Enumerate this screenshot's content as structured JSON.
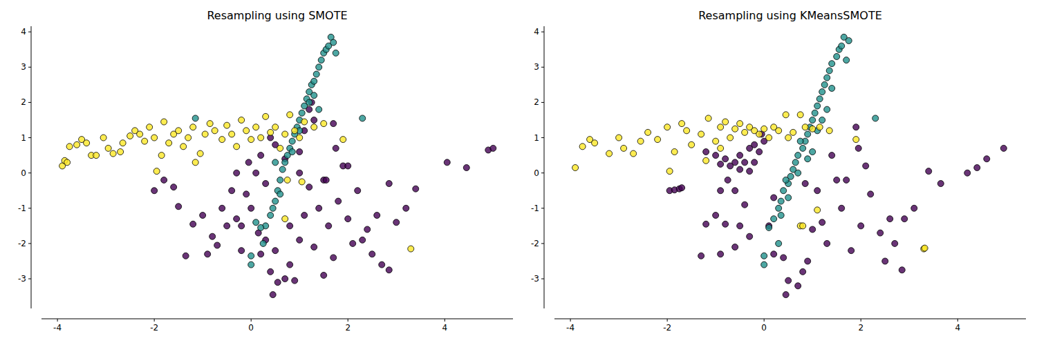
{
  "chart_data": [
    {
      "type": "scatter",
      "title": "Resampling using SMOTE",
      "xlim": [
        -4.33,
        5.41
      ],
      "ylim": [
        -3.84,
        4.16
      ],
      "xticks": [
        -4,
        -2,
        0,
        2,
        4
      ],
      "yticks": [
        -3,
        -2,
        -1,
        0,
        1,
        2,
        3,
        4
      ],
      "series": [
        {
          "color": "#440154",
          "x": [
            -2.0,
            -1.8,
            -1.6,
            -1.5,
            -1.2,
            -1.35,
            -1.0,
            -0.9,
            -0.8,
            -0.7,
            -0.6,
            -0.5,
            -0.4,
            -0.3,
            -0.2,
            -0.1,
            0.0,
            0.1,
            0.15,
            0.2,
            0.3,
            0.4,
            0.45,
            0.5,
            0.55,
            0.7,
            0.8,
            0.9,
            0.8,
            1.0,
            1.1,
            1.2,
            1.3,
            1.4,
            1.5,
            1.6,
            1.7,
            1.8,
            1.9,
            2.0,
            2.1,
            2.2,
            2.4,
            2.5,
            2.6,
            2.7,
            2.85,
            2.85,
            3.0,
            3.2,
            3.4,
            4.05,
            4.45,
            4.9,
            5.0,
            0.2,
            0.4,
            0.5,
            0.7,
            1.0,
            1.1,
            1.2,
            1.25,
            1.3,
            1.7,
            1.75,
            1.55,
            -0.05,
            -0.3,
            1.0,
            2.0,
            0.3,
            -0.2,
            1.5,
            2.3
          ],
          "values": [
            -0.5,
            -0.2,
            -0.4,
            -0.95,
            -1.45,
            -2.35,
            -1.2,
            -2.3,
            -1.8,
            -2.05,
            -1.0,
            -1.5,
            -0.5,
            -1.3,
            -2.2,
            -0.6,
            -1.0,
            0.0,
            -1.7,
            -2.3,
            -0.3,
            -2.8,
            -3.45,
            -2.2,
            -3.1,
            -3.0,
            -2.6,
            -3.05,
            -1.5,
            -1.9,
            -1.2,
            -0.4,
            -2.1,
            -1.0,
            -0.2,
            -1.5,
            -2.4,
            -0.8,
            0.2,
            -1.3,
            -2.0,
            -0.5,
            -1.6,
            -2.3,
            -1.2,
            -2.6,
            -0.3,
            -2.75,
            -1.4,
            -1.0,
            -0.45,
            0.3,
            0.15,
            0.65,
            0.7,
            0.5,
            1.0,
            0.8,
            0.4,
            0.6,
            1.2,
            1.8,
            2.0,
            1.5,
            1.4,
            0.7,
            -0.2,
            0.3,
            0.0,
            0.0,
            0.2,
            -1.9,
            -1.5,
            -2.9,
            -1.9
          ]
        },
        {
          "color": "#21918c",
          "x": [
            0.3,
            0.4,
            0.5,
            0.55,
            0.6,
            0.65,
            0.7,
            0.75,
            0.8,
            0.85,
            0.9,
            0.95,
            1.0,
            1.05,
            1.1,
            1.15,
            1.2,
            1.25,
            1.3,
            1.35,
            1.4,
            1.45,
            1.5,
            1.55,
            1.6,
            1.65,
            1.7,
            1.75,
            1.3,
            1.2,
            1.0,
            0.85,
            0.6,
            0.45,
            0.0,
            0.0,
            0.25,
            0.2,
            0.1,
            2.3,
            -1.15,
            0.5,
            1.4
          ],
          "values": [
            -1.5,
            -1.2,
            -0.8,
            -0.5,
            -0.2,
            0.1,
            0.3,
            0.5,
            0.7,
            0.9,
            1.1,
            1.3,
            1.5,
            1.7,
            1.9,
            2.1,
            2.3,
            2.5,
            2.6,
            2.8,
            3.0,
            3.2,
            3.4,
            3.5,
            3.6,
            3.85,
            3.7,
            3.4,
            2.2,
            2.0,
            1.2,
            0.6,
            -0.6,
            -1.0,
            -2.35,
            -2.6,
            -2.0,
            -1.55,
            -1.4,
            1.55,
            1.55,
            0.3,
            1.8
          ]
        },
        {
          "color": "#fde725",
          "x": [
            -3.9,
            -3.85,
            -3.8,
            -3.75,
            -3.6,
            -3.5,
            -3.4,
            -3.3,
            -3.2,
            -3.05,
            -2.95,
            -2.85,
            -2.7,
            -2.65,
            -2.5,
            -2.4,
            -2.3,
            -2.2,
            -2.1,
            -2.0,
            -1.95,
            -1.85,
            -1.8,
            -1.7,
            -1.6,
            -1.5,
            -1.4,
            -1.3,
            -1.2,
            -1.15,
            -1.05,
            -0.95,
            -0.85,
            -0.75,
            -0.6,
            -0.5,
            -0.4,
            -0.3,
            -0.2,
            -0.1,
            0.0,
            0.1,
            0.2,
            0.3,
            0.4,
            0.5,
            0.6,
            0.7,
            0.8,
            0.9,
            1.0,
            1.1,
            1.3,
            1.5,
            1.9,
            0.75,
            0.7,
            1.05,
            3.3
          ],
          "values": [
            0.2,
            0.35,
            0.3,
            0.75,
            0.8,
            0.95,
            0.85,
            0.5,
            0.5,
            1.0,
            0.7,
            0.55,
            0.6,
            0.85,
            1.05,
            1.2,
            1.1,
            0.9,
            1.3,
            1.0,
            0.05,
            0.5,
            1.45,
            0.85,
            1.1,
            1.2,
            0.75,
            1.0,
            1.3,
            0.3,
            0.55,
            1.1,
            1.4,
            1.2,
            0.95,
            1.35,
            1.1,
            0.75,
            1.5,
            1.2,
            0.95,
            1.3,
            1.0,
            1.6,
            1.15,
            1.3,
            0.7,
            1.1,
            1.65,
            1.2,
            1.0,
            1.45,
            1.3,
            1.4,
            0.95,
            -0.2,
            -1.3,
            -0.25,
            -2.15
          ]
        }
      ]
    },
    {
      "type": "scatter",
      "title": "Resampling using KMeansSMOTE",
      "xlim": [
        -4.33,
        5.41
      ],
      "ylim": [
        -3.84,
        4.16
      ],
      "xticks": [
        -4,
        -2,
        0,
        2,
        4
      ],
      "yticks": [
        -3,
        -2,
        -1,
        0,
        1,
        2,
        3,
        4
      ],
      "series": [
        {
          "color": "#440154",
          "x": [
            -1.95,
            -1.85,
            -1.75,
            -1.7,
            -1.2,
            -1.0,
            -0.8,
            -0.7,
            -0.5,
            -0.3,
            -0.2,
            -0.1,
            0.0,
            -0.05,
            -0.3,
            -0.5,
            -0.6,
            -0.4,
            -0.9,
            -0.2,
            -0.75,
            -0.6,
            -0.9,
            -0.4,
            -0.5,
            -1.2,
            -1.0,
            -0.8,
            -1.3,
            -0.9,
            -0.6,
            -0.3,
            0.1,
            0.2,
            0.4,
            0.45,
            0.5,
            0.7,
            0.8,
            0.9,
            1.0,
            1.2,
            1.3,
            1.5,
            1.6,
            1.8,
            1.9,
            1.95,
            2.0,
            2.1,
            2.2,
            2.4,
            2.5,
            2.6,
            2.7,
            2.85,
            2.9,
            3.1,
            3.4,
            3.65,
            4.2,
            4.4,
            4.6,
            4.95,
            1.1,
            0.85,
            1.4,
            0.2,
            1.7
          ],
          "values": [
            -0.5,
            -0.48,
            -0.45,
            -0.42,
            0.6,
            0.5,
            0.4,
            0.2,
            0.1,
            0.05,
            0.3,
            0.6,
            0.9,
            1.1,
            0.7,
            0.5,
            0.3,
            0.3,
            0.25,
            0.8,
            -0.2,
            -0.5,
            -0.5,
            -0.9,
            -1.5,
            -1.45,
            -1.2,
            -1.45,
            -2.35,
            -2.3,
            -2.1,
            -1.8,
            -1.5,
            -2.3,
            -2.4,
            -3.45,
            -3.05,
            -3.2,
            -2.8,
            -2.5,
            -1.6,
            -1.4,
            -2.0,
            -0.2,
            -1.0,
            -2.2,
            1.3,
            0.7,
            -1.5,
            0.2,
            -0.6,
            -1.7,
            -2.5,
            -1.3,
            -2.0,
            -2.75,
            -1.3,
            -1.0,
            0.05,
            -0.3,
            0.0,
            0.15,
            0.4,
            0.7,
            -0.5,
            -0.3,
            0.5,
            -0.7,
            -0.2
          ]
        },
        {
          "color": "#21918c",
          "x": [
            0.2,
            0.3,
            0.35,
            0.4,
            0.5,
            0.55,
            0.6,
            0.65,
            0.7,
            0.8,
            0.85,
            0.9,
            0.95,
            1.0,
            1.05,
            1.1,
            1.15,
            1.2,
            1.25,
            1.3,
            1.35,
            1.4,
            1.5,
            1.55,
            1.6,
            1.65,
            1.75,
            1.7,
            1.4,
            1.3,
            1.1,
            0.9,
            0.7,
            0.5,
            0.35,
            0.45,
            0.75,
            1.2,
            0.0,
            0.0,
            0.3,
            0.1,
            2.3,
            1.0
          ],
          "values": [
            -1.3,
            -1.0,
            -0.8,
            -0.5,
            -0.3,
            -0.1,
            0.1,
            0.3,
            0.5,
            0.7,
            0.9,
            1.1,
            1.3,
            1.5,
            1.7,
            1.9,
            2.1,
            2.3,
            2.5,
            2.7,
            2.9,
            3.1,
            3.3,
            3.5,
            3.6,
            3.85,
            3.75,
            3.2,
            2.4,
            1.8,
            1.2,
            0.4,
            0.0,
            -0.7,
            -1.2,
            -0.2,
            0.9,
            1.5,
            -2.35,
            -2.6,
            -2.0,
            -1.55,
            1.55,
            0.6
          ]
        },
        {
          "color": "#fde725",
          "x": [
            -3.9,
            -3.75,
            -3.6,
            -3.5,
            -3.2,
            -3.0,
            -2.9,
            -2.7,
            -2.55,
            -2.4,
            -2.2,
            -2.0,
            -1.95,
            -1.85,
            -1.7,
            -1.6,
            -1.5,
            -1.3,
            -1.15,
            -1.0,
            -0.9,
            -0.8,
            -0.7,
            -0.6,
            -0.5,
            -0.4,
            -0.3,
            -0.2,
            -0.1,
            0.0,
            0.1,
            0.2,
            0.3,
            0.45,
            0.5,
            0.6,
            0.75,
            0.85,
            1.0,
            1.15,
            1.35,
            1.9,
            0.75,
            0.8,
            1.1,
            3.3,
            3.32,
            -1.2,
            -0.9
          ],
          "values": [
            0.15,
            0.75,
            0.95,
            0.85,
            0.55,
            1.0,
            0.7,
            0.55,
            0.9,
            1.15,
            0.95,
            1.3,
            0.05,
            0.6,
            1.4,
            1.2,
            0.8,
            1.1,
            1.55,
            0.9,
            1.3,
            1.45,
            1.0,
            1.25,
            1.4,
            1.15,
            1.3,
            1.2,
            1.1,
            1.25,
            1.0,
            1.3,
            1.2,
            1.65,
            1.0,
            1.15,
            1.65,
            1.3,
            1.25,
            1.3,
            1.2,
            0.95,
            -1.5,
            -1.5,
            -1.05,
            -2.15,
            -2.13,
            0.35,
            0.7
          ]
        }
      ]
    }
  ]
}
